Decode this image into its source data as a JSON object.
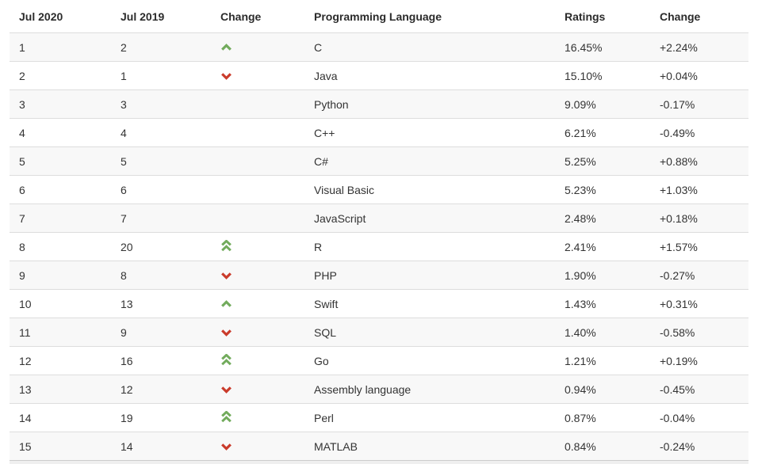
{
  "table": {
    "headers": [
      "Jul 2020",
      "Jul 2019",
      "Change",
      "Programming Language",
      "Ratings",
      "Change"
    ],
    "rows": [
      {
        "rank_now": "1",
        "rank_prev": "2",
        "change_icon": "chevron-up-icon",
        "language": "C",
        "ratings": "16.45%",
        "change": "+2.24%"
      },
      {
        "rank_now": "2",
        "rank_prev": "1",
        "change_icon": "chevron-down-icon",
        "language": "Java",
        "ratings": "15.10%",
        "change": "+0.04%"
      },
      {
        "rank_now": "3",
        "rank_prev": "3",
        "change_icon": "",
        "language": "Python",
        "ratings": "9.09%",
        "change": "-0.17%"
      },
      {
        "rank_now": "4",
        "rank_prev": "4",
        "change_icon": "",
        "language": "C++",
        "ratings": "6.21%",
        "change": "-0.49%"
      },
      {
        "rank_now": "5",
        "rank_prev": "5",
        "change_icon": "",
        "language": "C#",
        "ratings": "5.25%",
        "change": "+0.88%"
      },
      {
        "rank_now": "6",
        "rank_prev": "6",
        "change_icon": "",
        "language": "Visual Basic",
        "ratings": "5.23%",
        "change": "+1.03%"
      },
      {
        "rank_now": "7",
        "rank_prev": "7",
        "change_icon": "",
        "language": "JavaScript",
        "ratings": "2.48%",
        "change": "+0.18%"
      },
      {
        "rank_now": "8",
        "rank_prev": "20",
        "change_icon": "double-chevron-up-icon",
        "language": "R",
        "ratings": "2.41%",
        "change": "+1.57%"
      },
      {
        "rank_now": "9",
        "rank_prev": "8",
        "change_icon": "chevron-down-icon",
        "language": "PHP",
        "ratings": "1.90%",
        "change": "-0.27%"
      },
      {
        "rank_now": "10",
        "rank_prev": "13",
        "change_icon": "chevron-up-icon",
        "language": "Swift",
        "ratings": "1.43%",
        "change": "+0.31%"
      },
      {
        "rank_now": "11",
        "rank_prev": "9",
        "change_icon": "chevron-down-icon",
        "language": "SQL",
        "ratings": "1.40%",
        "change": "-0.58%"
      },
      {
        "rank_now": "12",
        "rank_prev": "16",
        "change_icon": "double-chevron-up-icon",
        "language": "Go",
        "ratings": "1.21%",
        "change": "+0.19%"
      },
      {
        "rank_now": "13",
        "rank_prev": "12",
        "change_icon": "chevron-down-icon",
        "language": "Assembly language",
        "ratings": "0.94%",
        "change": "-0.45%"
      },
      {
        "rank_now": "14",
        "rank_prev": "19",
        "change_icon": "double-chevron-up-icon",
        "language": "Perl",
        "ratings": "0.87%",
        "change": "-0.04%"
      },
      {
        "rank_now": "15",
        "rank_prev": "14",
        "change_icon": "chevron-down-icon",
        "language": "MATLAB",
        "ratings": "0.84%",
        "change": "-0.24%"
      }
    ]
  },
  "colors": {
    "arrow_up": "#72ab5c",
    "arrow_down": "#ca3b2b",
    "stripe": "#f8f8f8",
    "row_border": "#dddddd"
  }
}
